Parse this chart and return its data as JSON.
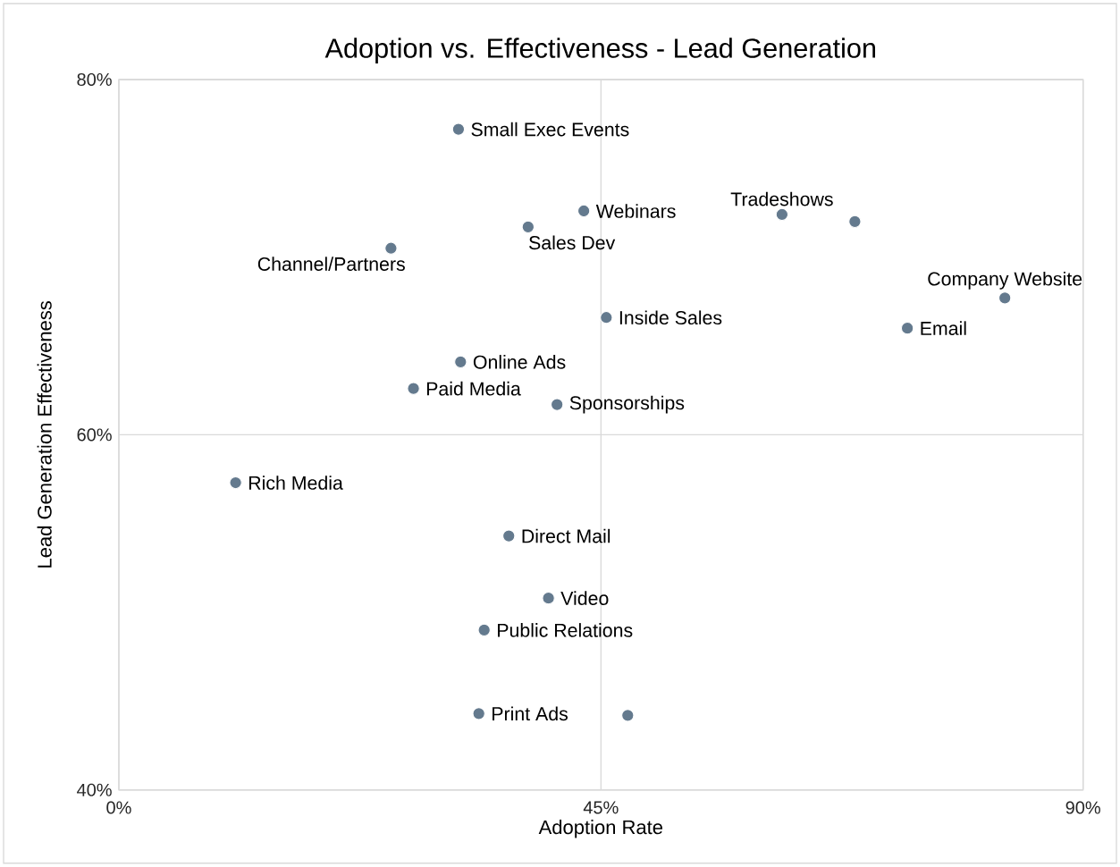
{
  "chart_data": {
    "type": "scatter",
    "title": "Adoption vs. Effectiveness - Lead Generation",
    "xlabel": "Adoption Rate",
    "ylabel": "Lead Generation Effectiveness",
    "x": [
      31.7,
      43.4,
      61.9,
      68.7,
      38.2,
      25.4,
      82.7,
      45.5,
      73.6,
      31.9,
      27.5,
      40.9,
      10.9,
      36.4,
      40.1,
      34.1,
      33.6,
      47.5
    ],
    "values": [
      77.2,
      72.6,
      72.4,
      72.0,
      71.7,
      70.5,
      67.7,
      66.6,
      66.0,
      64.1,
      62.6,
      61.7,
      57.3,
      54.3,
      50.8,
      49.0,
      44.3,
      44.2
    ],
    "color": "#647a8e",
    "marker": "circle",
    "xlim": [
      0,
      90
    ],
    "ylim": [
      40,
      80
    ],
    "xticks": [
      {
        "value": 0,
        "label": "0%"
      },
      {
        "value": 45,
        "label": "45%"
      },
      {
        "value": 90,
        "label": "90%"
      }
    ],
    "yticks": [
      {
        "value": 40,
        "label": "40%"
      },
      {
        "value": 60,
        "label": "60%"
      },
      {
        "value": 80,
        "label": "80%"
      }
    ],
    "grid": true,
    "annotations": [
      {
        "text": "Small Exec Events",
        "x": 31.7,
        "y": 77.2
      },
      {
        "text": "Webinars",
        "x": 43.4,
        "y": 72.6
      },
      {
        "text": "Tradeshows",
        "x": 61.9,
        "y": 72.4
      },
      {
        "text": "Sales Dev",
        "x": 38.2,
        "y": 71.7
      },
      {
        "text": "Channel/Partners",
        "x": 25.4,
        "y": 70.5
      },
      {
        "text": "Company Website",
        "x": 82.7,
        "y": 67.7
      },
      {
        "text": "Inside Sales",
        "x": 45.5,
        "y": 66.6
      },
      {
        "text": "Email",
        "x": 73.6,
        "y": 66.0
      },
      {
        "text": "Online Ads",
        "x": 31.9,
        "y": 64.1
      },
      {
        "text": "Paid Media",
        "x": 27.5,
        "y": 62.6
      },
      {
        "text": "Sponsorships",
        "x": 40.9,
        "y": 61.7
      },
      {
        "text": "Rich Media",
        "x": 10.9,
        "y": 57.3
      },
      {
        "text": "Direct Mail",
        "x": 36.4,
        "y": 54.3
      },
      {
        "text": "Video",
        "x": 40.1,
        "y": 50.8
      },
      {
        "text": "Public Relations",
        "x": 34.1,
        "y": 49.0
      },
      {
        "text": "Print Ads",
        "x": 33.6,
        "y": 44.3
      }
    ]
  }
}
